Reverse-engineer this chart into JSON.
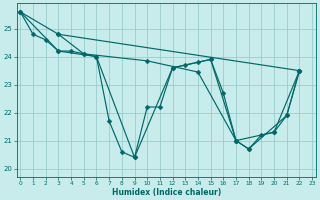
{
  "xlabel": "Humidex (Indice chaleur)",
  "bg_color": "#c8ecec",
  "line_color": "#006868",
  "grid_color": "#90c8c8",
  "xlim": [
    -0.3,
    23.3
  ],
  "ylim": [
    19.7,
    25.9
  ],
  "yticks": [
    20,
    21,
    22,
    23,
    24,
    25
  ],
  "xticks": [
    0,
    1,
    2,
    3,
    4,
    5,
    6,
    7,
    8,
    9,
    10,
    11,
    12,
    13,
    14,
    15,
    16,
    17,
    18,
    19,
    20,
    21,
    22,
    23
  ],
  "line1_x": [
    0,
    1,
    2,
    3,
    4,
    5,
    6,
    7,
    8,
    9,
    10,
    11,
    12,
    13,
    14,
    15,
    16,
    17,
    18,
    19,
    20,
    21,
    22
  ],
  "line1_y": [
    25.6,
    24.8,
    24.6,
    24.2,
    24.2,
    24.1,
    24.0,
    21.7,
    20.6,
    20.4,
    22.2,
    22.2,
    23.6,
    23.7,
    23.8,
    23.9,
    22.7,
    21.0,
    20.7,
    21.2,
    21.3,
    21.9,
    23.5
  ],
  "line2_x": [
    0,
    3,
    22
  ],
  "line2_y": [
    25.6,
    24.8,
    23.5
  ],
  "line3_x": [
    3,
    5,
    10,
    14,
    17,
    20,
    22
  ],
  "line3_y": [
    24.8,
    24.1,
    23.85,
    23.45,
    21.0,
    21.3,
    23.5
  ],
  "line4_x": [
    0,
    3,
    6,
    9,
    12,
    15,
    17,
    18,
    21,
    22
  ],
  "line4_y": [
    25.6,
    24.2,
    24.0,
    20.4,
    23.6,
    23.9,
    21.0,
    20.7,
    21.9,
    23.5
  ]
}
